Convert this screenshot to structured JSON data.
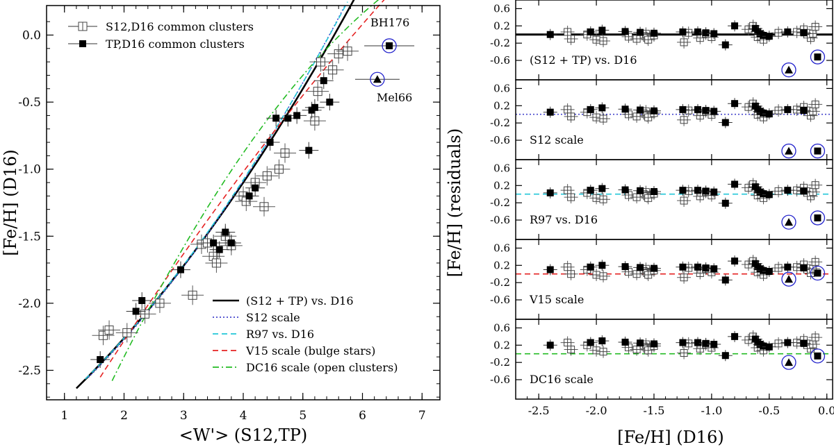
{
  "chart_data": [
    {
      "type": "scatter",
      "panel": "left",
      "xlabel": "<W'> (S12,TP)",
      "ylabel": "[Fe/H] (D16)",
      "xlim": [
        0.7,
        7.3
      ],
      "ylim": [
        -2.72,
        0.22
      ],
      "xticks": [
        "1",
        "2",
        "3",
        "4",
        "5",
        "6",
        "7"
      ],
      "yticks": [
        "0.0",
        "-0.5",
        "-1.0",
        "-1.5",
        "-2.0",
        "-2.5"
      ],
      "legend_top": [
        {
          "label": "S12,D16 common clusters",
          "marker": "open-square-cross"
        },
        {
          "label": "TP,D16 common clusters",
          "marker": "filled-square"
        }
      ],
      "legend_bottom": [
        {
          "label": "(S12 + TP) vs. D16",
          "color": "#000000",
          "style": "solid"
        },
        {
          "label": "S12 scale",
          "color": "#4444cc",
          "style": "dotted"
        },
        {
          "label": "R97 vs. D16",
          "color": "#22c6d8",
          "style": "dashed"
        },
        {
          "label": "V15 scale (bulge stars)",
          "color": "#e52222",
          "style": "dashed"
        },
        {
          "label": "DC16 scale (open clusters)",
          "color": "#22bb22",
          "style": "dashdot"
        }
      ],
      "annotations": [
        "BH176",
        "Mel66"
      ],
      "series": [
        {
          "name": "S12,D16 common clusters",
          "marker": "open",
          "x": [
            1.65,
            1.75,
            2.05,
            2.35,
            2.6,
            3.15,
            3.3,
            3.4,
            3.5,
            3.55,
            3.7,
            3.8,
            4.0,
            4.05,
            4.2,
            4.35,
            4.4,
            4.6,
            4.7,
            5.2,
            5.25,
            5.3,
            5.5,
            5.6,
            5.75
          ],
          "y": [
            -2.24,
            -2.2,
            -2.22,
            -2.08,
            -2.0,
            -1.94,
            -1.56,
            -1.55,
            -1.65,
            -1.7,
            -1.5,
            -1.57,
            -1.2,
            -1.24,
            -1.1,
            -1.28,
            -1.05,
            -1.0,
            -0.88,
            -0.64,
            -0.42,
            -0.2,
            -0.26,
            -0.14,
            -0.12
          ]
        },
        {
          "name": "TP,D16 common clusters",
          "marker": "filled",
          "x": [
            1.6,
            2.2,
            2.3,
            2.95,
            3.5,
            3.6,
            3.7,
            3.8,
            4.1,
            4.2,
            4.45,
            4.55,
            4.75,
            4.9,
            5.1,
            5.15,
            5.2,
            5.35,
            5.45
          ],
          "y": [
            -2.42,
            -2.06,
            -1.98,
            -1.75,
            -1.55,
            -1.6,
            -1.47,
            -1.55,
            -1.2,
            -1.14,
            -0.8,
            -0.62,
            -0.62,
            -0.6,
            -0.86,
            -0.56,
            -0.54,
            -0.34,
            -0.5
          ]
        },
        {
          "name": "BH176",
          "marker": "filled-square-circled",
          "x": [
            6.45
          ],
          "y": [
            -0.08
          ]
        },
        {
          "name": "Mel66",
          "marker": "filled-triangle-circled",
          "x": [
            6.25
          ],
          "y": [
            -0.33
          ]
        }
      ],
      "curves": [
        {
          "name": "(S12 + TP) vs. D16",
          "x": [
            1.2,
            6.0
          ],
          "fit": "quadratic",
          "coef": [
            -3.1,
            0.34,
            0.04
          ]
        },
        {
          "name": "S12 scale",
          "x": [
            1.4,
            5.7
          ],
          "fit": "quadratic",
          "coef": [
            -3.08,
            0.31,
            0.047
          ]
        },
        {
          "name": "R97 vs. D16",
          "x": [
            1.35,
            5.75
          ],
          "fit": "quadratic",
          "coef": [
            -3.08,
            0.32,
            0.045
          ]
        },
        {
          "name": "V15 scale (bulge stars)",
          "x": [
            1.6,
            6.4
          ],
          "fit": "quadratic",
          "coef": [
            -3.7,
            0.75,
            -0.02
          ]
        },
        {
          "name": "DC16 scale (open clusters)",
          "x": [
            1.8,
            6.35
          ],
          "fit": "quadratic",
          "coef": [
            -4.4,
            1.12,
            -0.06
          ]
        }
      ]
    },
    {
      "type": "scatter",
      "panel": "right-stack",
      "xlabel": "[Fe/H] (D16)",
      "ylabel": "[Fe/H] (residuals)",
      "xlim": [
        -2.7,
        0.05
      ],
      "ylim": [
        -1.05,
        0.8
      ],
      "xticks": [
        "-2.5",
        "-2.0",
        "-1.5",
        "-1.0",
        "-0.5",
        "0.0"
      ],
      "yticks": [
        "0.6",
        "0.2",
        "-0.2",
        "-0.6"
      ],
      "panels": [
        {
          "label": "(S12 + TP) vs. D16",
          "line_color": "#000000",
          "line_style": "solid",
          "shift": 0.0,
          "mel66": [
            -0.33,
            -0.82
          ],
          "bh176": [
            -0.08,
            -0.52
          ]
        },
        {
          "label": "S12 scale",
          "line_color": "#4444cc",
          "line_style": "dotted",
          "shift": 0.05,
          "mel66": [
            -0.33,
            -0.85
          ],
          "bh176": [
            -0.08,
            -0.85
          ]
        },
        {
          "label": "R97 vs. D16",
          "line_color": "#22c6d8",
          "line_style": "dashed",
          "shift": 0.03,
          "mel66": [
            -0.33,
            -0.65
          ],
          "bh176": [
            -0.08,
            -0.55
          ]
        },
        {
          "label": "V15 scale",
          "line_color": "#e52222",
          "line_style": "dashed",
          "shift": 0.1,
          "mel66": [
            -0.33,
            -0.12
          ],
          "bh176": [
            -0.08,
            0.02
          ]
        },
        {
          "label": "DC16 scale",
          "line_color": "#22bb22",
          "line_style": "dashed",
          "shift": 0.2,
          "mel66": [
            -0.33,
            -0.2
          ],
          "bh176": [
            -0.08,
            -0.05
          ]
        }
      ],
      "residuals_filled": {
        "x": [
          -2.4,
          -2.05,
          -1.95,
          -1.75,
          -1.62,
          -1.5,
          -1.25,
          -1.12,
          -1.05,
          -0.98,
          -0.88,
          -0.8,
          -0.62,
          -0.6,
          -0.58,
          -0.55,
          -0.5,
          -0.34,
          -0.2
        ],
        "y": [
          0.0,
          0.06,
          0.1,
          0.07,
          0.05,
          0.03,
          0.06,
          0.06,
          0.04,
          0.02,
          -0.24,
          0.2,
          0.14,
          0.07,
          0.02,
          -0.02,
          -0.04,
          0.06,
          0.04
        ]
      },
      "residuals_open": {
        "x": [
          -2.25,
          -2.22,
          -2.08,
          -2.0,
          -1.94,
          -1.72,
          -1.65,
          -1.57,
          -1.56,
          -1.55,
          -1.5,
          -1.24,
          -1.2,
          -1.1,
          -1.05,
          -1.0,
          -0.68,
          -0.64,
          -0.6,
          -0.55,
          -0.42,
          -0.26,
          -0.2,
          -0.14,
          -0.12,
          -0.1
        ],
        "y": [
          0.06,
          -0.1,
          0.0,
          -0.12,
          -0.15,
          -0.05,
          -0.1,
          0.02,
          -0.08,
          -0.12,
          -0.02,
          -0.18,
          0.04,
          -0.08,
          0.02,
          -0.06,
          0.12,
          0.2,
          -0.06,
          -0.12,
          0.04,
          0.06,
          0.12,
          -0.08,
          0.02,
          0.18
        ]
      }
    }
  ]
}
